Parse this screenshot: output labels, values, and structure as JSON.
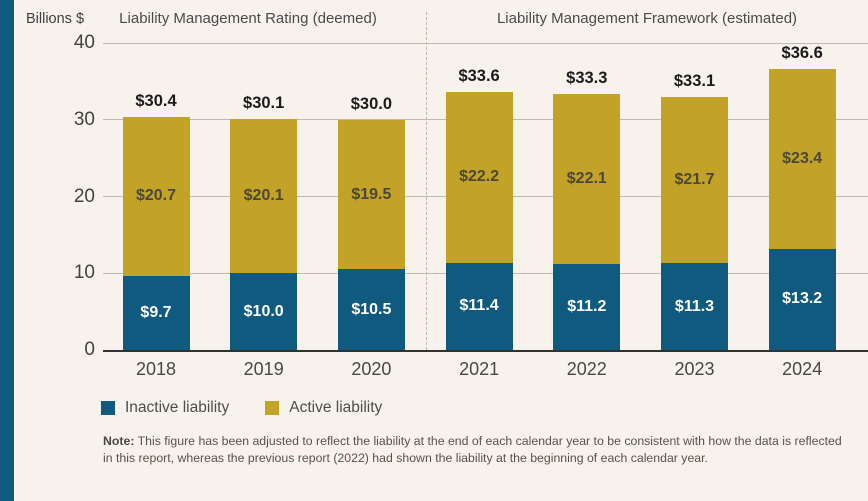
{
  "colors": {
    "background": "#f7f3ec",
    "accent_stripe": "#105a80",
    "inactive_blue": "#105a80",
    "active_gold": "#c2a227",
    "gridline": "#c0bbb0",
    "baseline": "#34322d"
  },
  "axis": {
    "unit_label": "Billions $",
    "ticks": [
      "40",
      "30",
      "20",
      "10",
      "0"
    ]
  },
  "sections": [
    {
      "title": "Liability Management Rating (deemed)"
    },
    {
      "title": "Liability Management Framework (estimated)"
    }
  ],
  "chart_data": {
    "type": "bar",
    "stacked": true,
    "categories": [
      "2018",
      "2019",
      "2020",
      "2021",
      "2022",
      "2023",
      "2024"
    ],
    "series": [
      {
        "name": "Inactive liability",
        "color": "#105a80",
        "values": [
          9.7,
          10.0,
          10.5,
          11.4,
          11.2,
          11.3,
          13.2
        ],
        "labels": [
          "$9.7",
          "$10.0",
          "$10.5",
          "$11.4",
          "$11.2",
          "$11.3",
          "$13.2"
        ]
      },
      {
        "name": "Active liability",
        "color": "#c2a227",
        "values": [
          20.7,
          20.1,
          19.5,
          22.2,
          22.1,
          21.7,
          23.4
        ],
        "labels": [
          "$20.7",
          "$20.1",
          "$19.5",
          "$22.2",
          "$22.1",
          "$21.7",
          "$23.4"
        ]
      }
    ],
    "totals": [
      30.4,
      30.1,
      30.0,
      33.6,
      33.3,
      33.1,
      36.6
    ],
    "total_labels": [
      "$30.4",
      "$30.1",
      "$30.0",
      "$33.6",
      "$33.3",
      "$33.1",
      "$36.6"
    ],
    "ylabel": "Billions $",
    "ylim": [
      0,
      40
    ],
    "gridlines": [
      10,
      20,
      30,
      40
    ],
    "grid": true,
    "section_split_after_index": 2,
    "legend_position": "bottom-left"
  },
  "legend": [
    {
      "label": "Inactive liability",
      "color": "#105a80"
    },
    {
      "label": "Active liability",
      "color": "#c2a227"
    }
  ],
  "note": {
    "label": "Note:",
    "text": " This figure has been adjusted to reflect the liability at the end of each calendar year to be consistent with how the data is reflected in this report, whereas the previous report (2022) had shown the liability at the beginning of each calendar year."
  }
}
